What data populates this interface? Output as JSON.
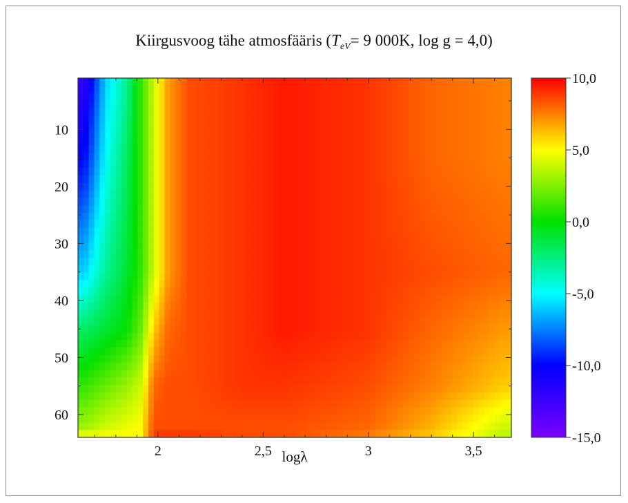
{
  "chart_data": {
    "type": "heatmap",
    "title": {
      "prefix": "Kiirgusvoog tähe atmosfääris (",
      "T_symbol": "T",
      "T_subscript": "eV",
      "suffix": "= 9 000K, log g = 4,0)"
    },
    "xlabel": "logλ",
    "ylabel": "",
    "xlim": [
      1.62,
      3.68
    ],
    "ylim": [
      1,
      64
    ],
    "y_inverted": true,
    "x_ticks": [
      {
        "value": 2,
        "label": "2"
      },
      {
        "value": 2.5,
        "label": "2,5"
      },
      {
        "value": 3,
        "label": "3"
      },
      {
        "value": 3.5,
        "label": "3,5"
      }
    ],
    "y_ticks": [
      {
        "value": 10,
        "label": "10"
      },
      {
        "value": 20,
        "label": "20"
      },
      {
        "value": 30,
        "label": "30"
      },
      {
        "value": 40,
        "label": "40"
      },
      {
        "value": 50,
        "label": "50"
      },
      {
        "value": 60,
        "label": "60"
      }
    ],
    "colorbar": {
      "range": [
        -15,
        10
      ],
      "ticks": [
        {
          "value": 10,
          "label": "10,0"
        },
        {
          "value": 5,
          "label": "5,0"
        },
        {
          "value": 0,
          "label": "0,0"
        },
        {
          "value": -5,
          "label": "-5,0"
        },
        {
          "value": -10,
          "label": "-10,0"
        },
        {
          "value": -15,
          "label": "-15,0"
        }
      ],
      "colors": [
        "#ff0000",
        "#ffff00",
        "#00e000",
        "#00ffff",
        "#0000ff",
        "#7a00ff"
      ]
    },
    "grid": false,
    "approx_values": {
      "logl": [
        1.65,
        1.75,
        1.85,
        1.92,
        1.98,
        2.05,
        2.15,
        2.4,
        2.6,
        3.0,
        3.3,
        3.65
      ],
      "depth": [
        1,
        15,
        35,
        45,
        55,
        62,
        64
      ],
      "z": [
        [
          -12,
          -6,
          -3,
          1,
          4,
          7,
          8.5,
          9,
          9.5,
          9,
          8,
          7.5
        ],
        [
          -10,
          -5,
          -2,
          1,
          4,
          7,
          8.5,
          9,
          9.5,
          9,
          8,
          7.5
        ],
        [
          -6,
          -3,
          -1,
          1,
          4,
          7,
          8.5,
          9,
          9.5,
          9,
          8.5,
          8
        ],
        [
          -2,
          -1,
          0,
          2,
          6,
          8,
          8.5,
          9,
          9.5,
          9,
          8,
          7
        ],
        [
          1,
          2,
          3,
          4,
          8,
          8.5,
          8.5,
          9,
          9,
          8.5,
          7.5,
          6
        ],
        [
          3,
          4,
          4.5,
          5,
          8.5,
          8.5,
          8.5,
          8.5,
          8.5,
          8,
          6.5,
          4
        ],
        [
          5,
          5,
          5,
          5,
          9,
          9,
          9,
          8.5,
          8.5,
          7.5,
          6,
          3.5
        ]
      ]
    }
  }
}
